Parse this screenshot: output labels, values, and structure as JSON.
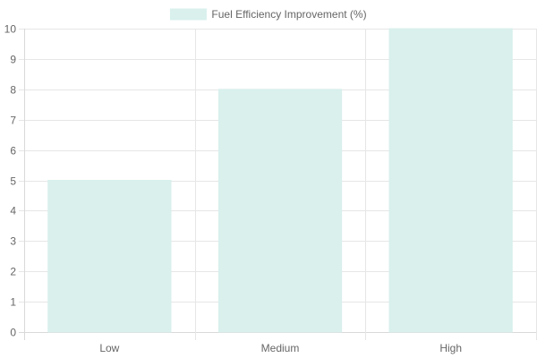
{
  "chart_data": {
    "type": "bar",
    "categories": [
      "Low",
      "Medium",
      "High"
    ],
    "series": [
      {
        "name": "Fuel Efficiency Improvement (%)",
        "values": [
          5,
          8,
          10
        ]
      }
    ],
    "ylim": [
      0,
      10
    ],
    "y_ticks": [
      "0",
      "1",
      "2",
      "3",
      "4",
      "5",
      "6",
      "7",
      "8",
      "9",
      "10"
    ],
    "legend_position": "top",
    "grid": true,
    "colors": {
      "bar_fill": "#d9f0ed",
      "bar_stroke": "#d9f0ed",
      "grid": "#e6e6e6",
      "axis": "#d9d9d9",
      "label": "#666666"
    }
  }
}
